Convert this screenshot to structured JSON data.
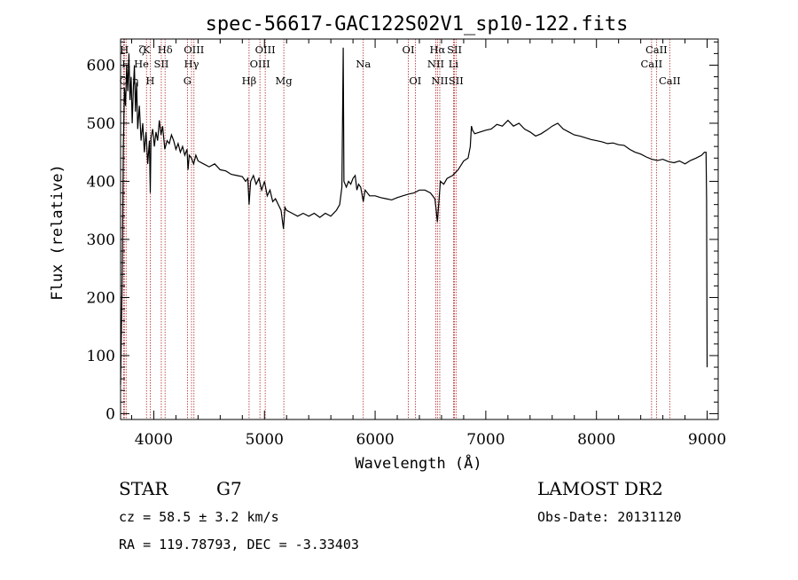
{
  "chart_data": {
    "type": "line",
    "title": "spec-56617-GAC122S02V1_sp10-122.fits",
    "xlabel": "Wavelength (Å)",
    "ylabel": "Flux (relative)",
    "xlim": [
      3700,
      9100
    ],
    "ylim": [
      -10,
      645
    ],
    "x_ticks": [
      4000,
      5000,
      6000,
      7000,
      8000,
      9000
    ],
    "y_ticks": [
      0,
      100,
      200,
      300,
      400,
      500,
      600
    ],
    "grid": false,
    "series": [
      {
        "points": [
          [
            3700,
            50
          ],
          [
            3715,
            240
          ],
          [
            3725,
            460
          ],
          [
            3735,
            560
          ],
          [
            3745,
            530
          ],
          [
            3755,
            600
          ],
          [
            3765,
            555
          ],
          [
            3775,
            620
          ],
          [
            3785,
            540
          ],
          [
            3795,
            580
          ],
          [
            3805,
            500
          ],
          [
            3815,
            560
          ],
          [
            3825,
            600
          ],
          [
            3835,
            520
          ],
          [
            3845,
            570
          ],
          [
            3855,
            490
          ],
          [
            3870,
            530
          ],
          [
            3885,
            470
          ],
          [
            3900,
            500
          ],
          [
            3915,
            450
          ],
          [
            3930,
            485
          ],
          [
            3945,
            430
          ],
          [
            3960,
            470
          ],
          [
            3968,
            380
          ],
          [
            3975,
            475
          ],
          [
            3990,
            490
          ],
          [
            4005,
            460
          ],
          [
            4020,
            485
          ],
          [
            4035,
            470
          ],
          [
            4050,
            505
          ],
          [
            4065,
            480
          ],
          [
            4080,
            495
          ],
          [
            4100,
            455
          ],
          [
            4120,
            470
          ],
          [
            4140,
            465
          ],
          [
            4160,
            480
          ],
          [
            4180,
            470
          ],
          [
            4200,
            455
          ],
          [
            4220,
            465
          ],
          [
            4240,
            450
          ],
          [
            4260,
            460
          ],
          [
            4280,
            445
          ],
          [
            4300,
            455
          ],
          [
            4310,
            420
          ],
          [
            4320,
            445
          ],
          [
            4340,
            440
          ],
          [
            4360,
            430
          ],
          [
            4380,
            445
          ],
          [
            4400,
            435
          ],
          [
            4450,
            430
          ],
          [
            4500,
            425
          ],
          [
            4550,
            430
          ],
          [
            4600,
            420
          ],
          [
            4650,
            418
          ],
          [
            4700,
            412
          ],
          [
            4750,
            410
          ],
          [
            4800,
            408
          ],
          [
            4830,
            400
          ],
          [
            4850,
            405
          ],
          [
            4861,
            360
          ],
          [
            4875,
            400
          ],
          [
            4900,
            410
          ],
          [
            4925,
            395
          ],
          [
            4950,
            405
          ],
          [
            4975,
            385
          ],
          [
            5000,
            400
          ],
          [
            5025,
            375
          ],
          [
            5050,
            385
          ],
          [
            5075,
            365
          ],
          [
            5100,
            370
          ],
          [
            5125,
            360
          ],
          [
            5150,
            350
          ],
          [
            5172,
            318
          ],
          [
            5185,
            355
          ],
          [
            5200,
            350
          ],
          [
            5250,
            345
          ],
          [
            5300,
            340
          ],
          [
            5350,
            345
          ],
          [
            5400,
            340
          ],
          [
            5450,
            345
          ],
          [
            5500,
            338
          ],
          [
            5550,
            345
          ],
          [
            5600,
            340
          ],
          [
            5650,
            350
          ],
          [
            5680,
            360
          ],
          [
            5700,
            390
          ],
          [
            5712,
            630
          ],
          [
            5718,
            400
          ],
          [
            5740,
            390
          ],
          [
            5760,
            400
          ],
          [
            5780,
            395
          ],
          [
            5800,
            405
          ],
          [
            5820,
            410
          ],
          [
            5835,
            385
          ],
          [
            5850,
            395
          ],
          [
            5870,
            390
          ],
          [
            5893,
            365
          ],
          [
            5910,
            385
          ],
          [
            5950,
            375
          ],
          [
            6000,
            375
          ],
          [
            6050,
            372
          ],
          [
            6100,
            370
          ],
          [
            6150,
            368
          ],
          [
            6200,
            372
          ],
          [
            6250,
            375
          ],
          [
            6300,
            378
          ],
          [
            6350,
            380
          ],
          [
            6400,
            385
          ],
          [
            6450,
            385
          ],
          [
            6500,
            380
          ],
          [
            6540,
            370
          ],
          [
            6555,
            345
          ],
          [
            6563,
            330
          ],
          [
            6572,
            355
          ],
          [
            6590,
            400
          ],
          [
            6620,
            395
          ],
          [
            6650,
            405
          ],
          [
            6700,
            410
          ],
          [
            6750,
            420
          ],
          [
            6800,
            435
          ],
          [
            6840,
            440
          ],
          [
            6860,
            460
          ],
          [
            6870,
            495
          ],
          [
            6880,
            488
          ],
          [
            6900,
            482
          ],
          [
            6950,
            485
          ],
          [
            7000,
            488
          ],
          [
            7050,
            490
          ],
          [
            7100,
            498
          ],
          [
            7150,
            495
          ],
          [
            7200,
            505
          ],
          [
            7250,
            495
          ],
          [
            7300,
            500
          ],
          [
            7350,
            490
          ],
          [
            7400,
            485
          ],
          [
            7450,
            478
          ],
          [
            7500,
            482
          ],
          [
            7550,
            488
          ],
          [
            7600,
            495
          ],
          [
            7650,
            500
          ],
          [
            7700,
            490
          ],
          [
            7750,
            485
          ],
          [
            7800,
            480
          ],
          [
            7850,
            478
          ],
          [
            7900,
            475
          ],
          [
            7950,
            472
          ],
          [
            8000,
            470
          ],
          [
            8050,
            468
          ],
          [
            8100,
            465
          ],
          [
            8150,
            466
          ],
          [
            8200,
            463
          ],
          [
            8250,
            462
          ],
          [
            8300,
            455
          ],
          [
            8350,
            450
          ],
          [
            8400,
            447
          ],
          [
            8450,
            442
          ],
          [
            8500,
            438
          ],
          [
            8550,
            436
          ],
          [
            8600,
            438
          ],
          [
            8650,
            434
          ],
          [
            8700,
            432
          ],
          [
            8750,
            435
          ],
          [
            8800,
            430
          ],
          [
            8850,
            436
          ],
          [
            8900,
            440
          ],
          [
            8950,
            445
          ],
          [
            8975,
            450
          ],
          [
            8990,
            450
          ],
          [
            8995,
            370
          ],
          [
            9000,
            80
          ]
        ]
      }
    ],
    "lines": [
      {
        "label": "H",
        "wave": 3734,
        "row": 0
      },
      {
        "label": "O",
        "wave": 3727,
        "row": 2
      },
      {
        "label": "H",
        "wave": 3750,
        "row": 1
      },
      {
        "label": "K",
        "wave": 3934,
        "row": 0
      },
      {
        "label": "H",
        "wave": 3968,
        "row": 2
      },
      {
        "label": "Hδ",
        "wave": 4102,
        "row": 0
      },
      {
        "label": "SII",
        "wave": 4068,
        "row": 1
      },
      {
        "label": "OIII",
        "wave": 4363,
        "row": 0
      },
      {
        "label": "Hγ",
        "wave": 4341,
        "row": 1
      },
      {
        "label": "G",
        "wave": 4304,
        "row": 2
      },
      {
        "label": "Hβ",
        "wave": 4861,
        "row": 2
      },
      {
        "label": "OIII",
        "wave": 5007,
        "row": 0
      },
      {
        "label": "OIII",
        "wave": 4959,
        "row": 1
      },
      {
        "label": "Mg",
        "wave": 5175,
        "row": 2
      },
      {
        "label": "Na",
        "wave": 5893,
        "row": 1
      },
      {
        "label": "OI",
        "wave": 6300,
        "row": 0
      },
      {
        "label": "OI",
        "wave": 6363,
        "row": 2
      },
      {
        "label": "Hα",
        "wave": 6563,
        "row": 0
      },
      {
        "label": "NII",
        "wave": 6548,
        "row": 1
      },
      {
        "label": "NII",
        "wave": 6584,
        "row": 2
      },
      {
        "label": "SII",
        "wave": 6717,
        "row": 0
      },
      {
        "label": "Li",
        "wave": 6708,
        "row": 1
      },
      {
        "label": "SII",
        "wave": 6731,
        "row": 2
      },
      {
        "label": "CaII",
        "wave": 8542,
        "row": 0
      },
      {
        "label": "CaII",
        "wave": 8498,
        "row": 1
      },
      {
        "label": "CaII",
        "wave": 8662,
        "row": 2
      }
    ],
    "line_label_extras": [
      {
        "text": "He",
        "wave": 3889,
        "row": 1
      },
      {
        "text": "η",
        "wave": 3835,
        "row": 2
      },
      {
        "text": "ζ",
        "wave": 3889,
        "row": 0
      }
    ]
  },
  "info": {
    "class": "STAR",
    "subclass": "G7",
    "survey": "LAMOST DR2",
    "cz": "cz = 58.5 ± 3.2 km/s",
    "obs_date": "Obs-Date: 20131120",
    "radec": "RA = 119.78793, DEC =  -3.33403"
  },
  "colors": {
    "line_marker": "#b22222",
    "spectrum": "#000000"
  }
}
